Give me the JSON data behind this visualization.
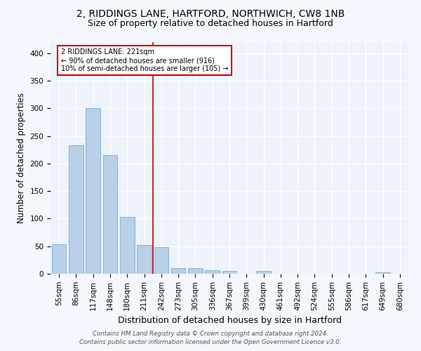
{
  "title": "2, RIDDINGS LANE, HARTFORD, NORTHWICH, CW8 1NB",
  "subtitle": "Size of property relative to detached houses in Hartford",
  "xlabel": "Distribution of detached houses by size in Hartford",
  "ylabel": "Number of detached properties",
  "categories": [
    "55sqm",
    "86sqm",
    "117sqm",
    "148sqm",
    "180sqm",
    "211sqm",
    "242sqm",
    "273sqm",
    "305sqm",
    "336sqm",
    "367sqm",
    "399sqm",
    "430sqm",
    "461sqm",
    "492sqm",
    "524sqm",
    "555sqm",
    "586sqm",
    "617sqm",
    "649sqm",
    "680sqm"
  ],
  "values": [
    53,
    233,
    300,
    215,
    103,
    52,
    49,
    10,
    10,
    7,
    5,
    0,
    5,
    0,
    0,
    0,
    0,
    0,
    0,
    3,
    0
  ],
  "bar_color": "#b8d0e8",
  "bar_edge_color": "#7aaace",
  "marker_label": "2 RIDDINGS LANE: 221sqm",
  "annotation_line1": "← 90% of detached houses are smaller (916)",
  "annotation_line2": "10% of semi-detached houses are larger (105) →",
  "vline_color": "#cc0000",
  "annotation_box_edge": "#cc0000",
  "background_color": "#eef2fa",
  "grid_color": "#ffffff",
  "footer_line1": "Contains HM Land Registry data © Crown copyright and database right 2024.",
  "footer_line2": "Contains public sector information licensed under the Open Government Licence v3.0.",
  "ylim": [
    0,
    420
  ],
  "title_fontsize": 10,
  "subtitle_fontsize": 9,
  "axis_label_fontsize": 8.5,
  "tick_fontsize": 7.5
}
